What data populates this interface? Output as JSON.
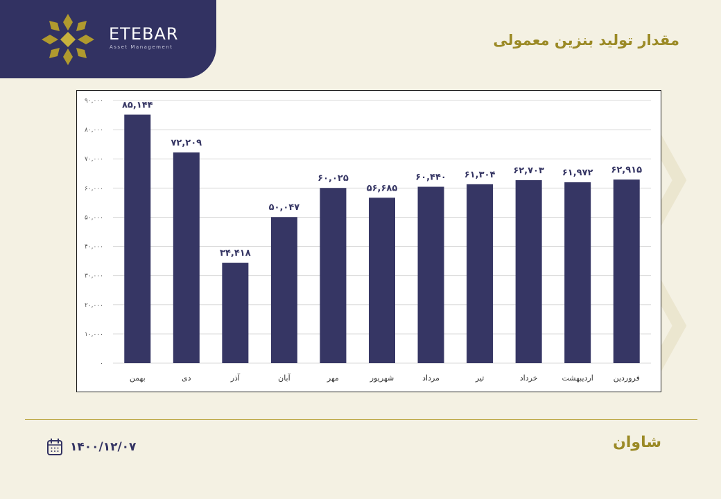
{
  "brand": {
    "name": "ETEBAR",
    "subtitle": "Asset Management"
  },
  "header": {
    "title": "مقدار تولید بنزین معمولی"
  },
  "footer": {
    "brand": "شاوان",
    "date": "۱۴۰۰/۱۲/۰۷"
  },
  "colors": {
    "bar": "#363664",
    "panel": "#323262",
    "accent": "#9b8a26",
    "background": "#f4f1e3"
  },
  "icons": {
    "logo": "etebar-leaf-logo-icon",
    "date": "calendar-icon"
  },
  "chart_data": {
    "type": "bar",
    "categories": [
      "فروردین",
      "اردیبهشت",
      "خرداد",
      "تیر",
      "مرداد",
      "شهریور",
      "مهر",
      "آبان",
      "آذر",
      "دی",
      "بهمن"
    ],
    "values": [
      62915,
      61972,
      62703,
      61304,
      60440,
      56685,
      60025,
      50047,
      34418,
      72209,
      85144
    ],
    "data_labels": [
      "۶۲,۹۱۵",
      "۶۱,۹۷۲",
      "۶۲,۷۰۳",
      "۶۱,۳۰۴",
      "۶۰,۴۴۰",
      "۵۶,۶۸۵",
      "۶۰,۰۲۵",
      "۵۰,۰۴۷",
      "۳۴,۴۱۸",
      "۷۲,۲۰۹",
      "۸۵,۱۴۴"
    ],
    "y_ticks": [
      0,
      10000,
      20000,
      30000,
      40000,
      50000,
      60000,
      70000,
      80000,
      90000
    ],
    "y_tick_labels": [
      "۰",
      "۱۰,۰۰۰",
      "۲۰,۰۰۰",
      "۳۰,۰۰۰",
      "۴۰,۰۰۰",
      "۵۰,۰۰۰",
      "۶۰,۰۰۰",
      "۷۰,۰۰۰",
      "۸۰,۰۰۰",
      "۹۰,۰۰۰"
    ],
    "ylim": [
      0,
      90000
    ],
    "grid": true,
    "legend": "none"
  }
}
